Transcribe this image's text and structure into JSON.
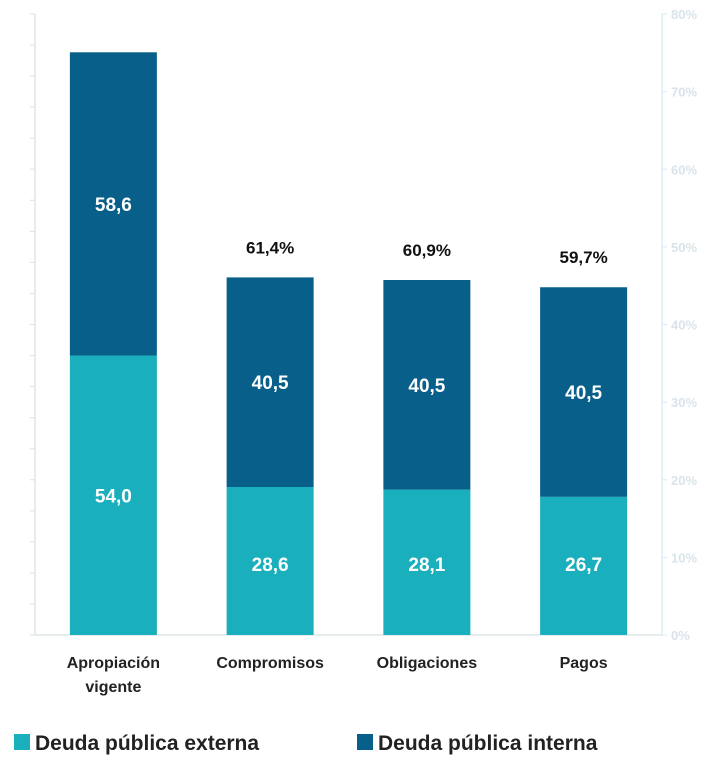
{
  "chart_data": {
    "type": "bar",
    "stacked": true,
    "categories": [
      "Apropiación vigente",
      "Compromisos",
      "Obligaciones",
      "Pagos"
    ],
    "category_lines": [
      [
        "Apropiación",
        "vigente"
      ],
      [
        "Compromisos"
      ],
      [
        "Obligaciones"
      ],
      [
        "Pagos"
      ]
    ],
    "series": [
      {
        "name": "Deuda pública externa",
        "color": "#1aafbc",
        "values": [
          54.0,
          28.6,
          28.1,
          26.7
        ],
        "labels": [
          "54,0",
          "28,6",
          "28,1",
          "26,7"
        ]
      },
      {
        "name": "Deuda pública interna",
        "color": "#08608a",
        "values": [
          58.6,
          40.5,
          40.5,
          40.5
        ],
        "labels": [
          "58,6",
          "40,5",
          "40,5",
          "40,5"
        ]
      }
    ],
    "execution_pct": [
      "",
      "61,4%",
      "60,9%",
      "59,7%"
    ],
    "ylim": [
      0,
      120
    ],
    "y2_ticks": [
      "0%",
      "10%",
      "20%",
      "30%",
      "40%",
      "50%",
      "60%",
      "70%",
      "80%"
    ],
    "legend_position": "bottom",
    "grid": false
  }
}
